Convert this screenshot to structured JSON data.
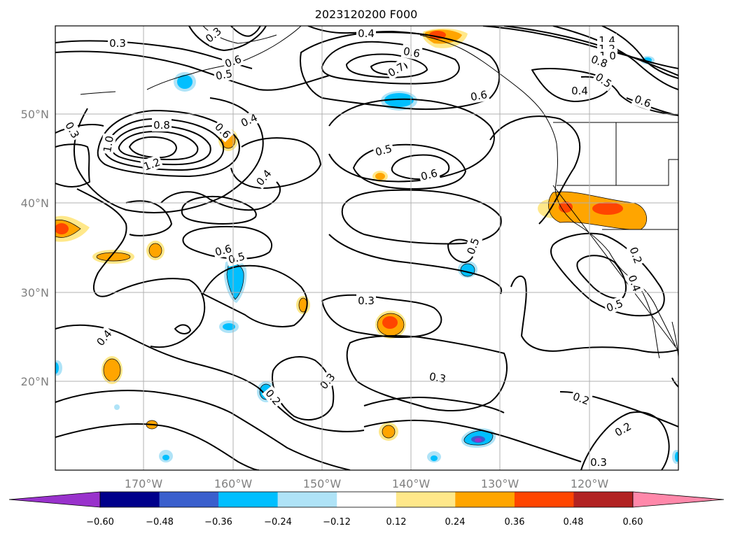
{
  "title": "2023120200 F000",
  "lon_ticks": [
    "170°W",
    "160°W",
    "150°W",
    "140°W",
    "130°W",
    "120°W"
  ],
  "lat_ticks": [
    "50°N",
    "40°N",
    "30°N",
    "20°N"
  ],
  "colorbar": {
    "labels": [
      "−0.60",
      "−0.48",
      "−0.36",
      "−0.24",
      "−0.12",
      "0.12",
      "0.24",
      "0.36",
      "0.48",
      "0.60"
    ],
    "colors": [
      "#9932cc",
      "#00008b",
      "#3a5fcd",
      "#00bfff",
      "#afe3f7",
      "#ffffff",
      "#ffe88a",
      "#ffa500",
      "#ff4500",
      "#b22222",
      "#ff88aa"
    ]
  },
  "contour_labels": [
    {
      "text": "0.3"
    },
    {
      "text": "0.6"
    },
    {
      "text": "0.5"
    },
    {
      "text": "0.3"
    },
    {
      "text": "0.4"
    },
    {
      "text": "0.6"
    },
    {
      "text": "0.7"
    },
    {
      "text": "0.6"
    },
    {
      "text": "1.4"
    },
    {
      "text": "1.2"
    },
    {
      "text": "1.0"
    },
    {
      "text": "0.8"
    },
    {
      "text": "0.5"
    },
    {
      "text": "0.4"
    },
    {
      "text": "0.6"
    },
    {
      "text": "0.3"
    },
    {
      "text": "0.8"
    },
    {
      "text": "1.2"
    },
    {
      "text": "1.0"
    },
    {
      "text": "0.6"
    },
    {
      "text": "0.4"
    },
    {
      "text": "0.4"
    },
    {
      "text": "0.5"
    },
    {
      "text": "0.6"
    },
    {
      "text": "0.6"
    },
    {
      "text": "0.5"
    },
    {
      "text": "0.5"
    },
    {
      "text": "0.3"
    },
    {
      "text": "0.4"
    },
    {
      "text": "0.3"
    },
    {
      "text": "0.3"
    },
    {
      "text": "0.2"
    },
    {
      "text": "0.2"
    },
    {
      "text": "0.2"
    },
    {
      "text": "0.3"
    },
    {
      "text": "0.2"
    },
    {
      "text": "0.4"
    },
    {
      "text": "0.5"
    }
  ]
}
